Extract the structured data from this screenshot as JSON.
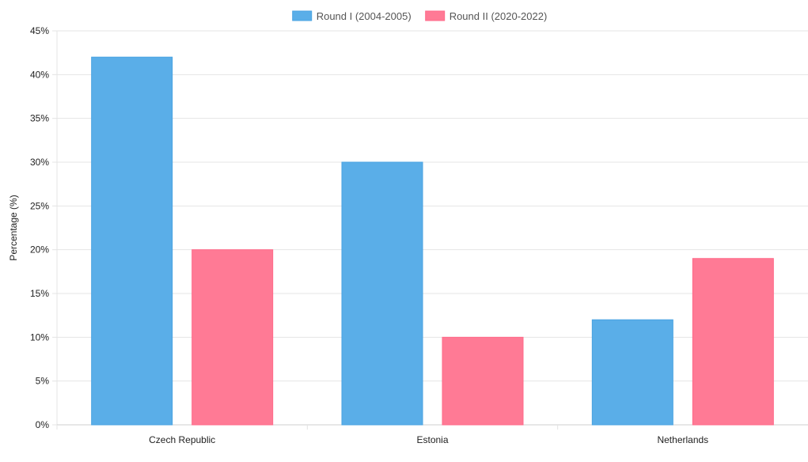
{
  "chart_data": {
    "type": "bar",
    "title": "",
    "xlabel": "",
    "ylabel": "Percentage (%)",
    "categories": [
      "Czech Republic",
      "Estonia",
      "Netherlands"
    ],
    "series": [
      {
        "name": "Round I (2004-2005)",
        "values": [
          42,
          30,
          12
        ],
        "color": "#5aaee8",
        "border": "#4aa3e2"
      },
      {
        "name": "Round II (2020-2022)",
        "values": [
          20,
          10,
          19
        ],
        "color": "#ff7a95",
        "border": "#ff6a89"
      }
    ],
    "ylim": [
      0,
      45
    ],
    "yticks": [
      "0%",
      "5%",
      "10%",
      "15%",
      "20%",
      "25%",
      "30%",
      "35%",
      "40%",
      "45%"
    ],
    "legend_position": "top",
    "grid": true
  }
}
